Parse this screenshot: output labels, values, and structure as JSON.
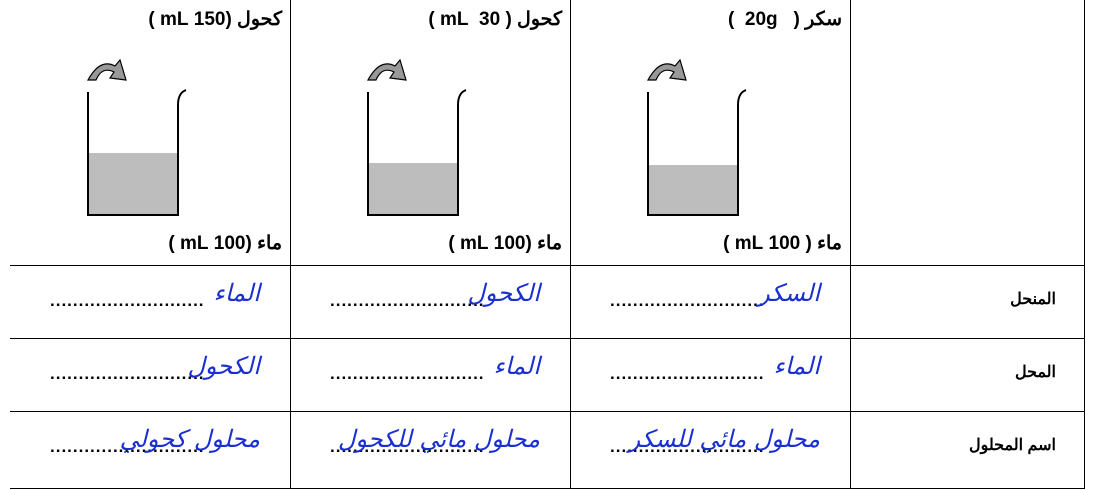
{
  "row_labels": [
    "المنحل",
    "المحل",
    "اسم المحلول"
  ],
  "dots": "...........................",
  "columns": [
    {
      "substance": "كحول (150 mL )",
      "water": "ماء (100 mL )",
      "solute": "الماء",
      "solvent": "الكحول",
      "solution": "محلول كحولي"
    },
    {
      "substance": "كحول ( 30  mL )",
      "water": "ماء (100 mL )",
      "solute": "الكحول",
      "solvent": "الماء",
      "solution": "محلول مائي للكحول"
    },
    {
      "substance": "سكر (   20g  )",
      "water": "ماء ( 100 mL )",
      "solute": "السكر",
      "solvent": "الماء",
      "solution": "محلول مائي للسكر"
    }
  ]
}
